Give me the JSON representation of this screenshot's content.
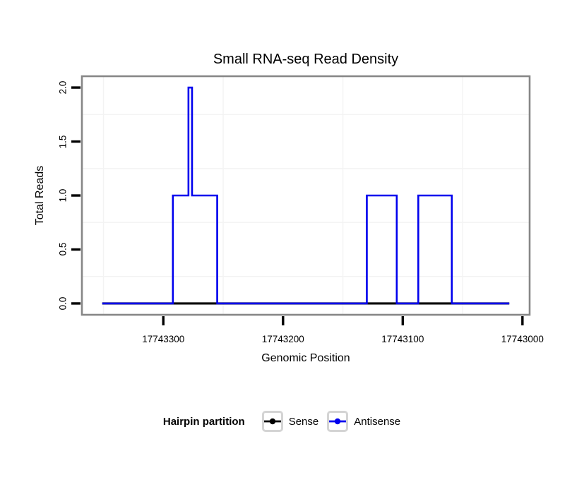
{
  "chart_data": {
    "type": "line",
    "subtype": "step-coverage",
    "title": "Small RNA-seq Read Density",
    "xlabel": "Genomic Position",
    "ylabel": "Total Reads",
    "x_axis": {
      "reversed": true,
      "domain_left": 17743368,
      "domain_right": 17742994,
      "ticks": [
        {
          "value": 17743300,
          "label": "17743300"
        },
        {
          "value": 17743200,
          "label": "17743200"
        },
        {
          "value": 17743100,
          "label": "17743100"
        },
        {
          "value": 17743000,
          "label": "17743000"
        }
      ]
    },
    "y_axis": {
      "domain_bottom": -0.105,
      "domain_top": 2.105,
      "ticks": [
        {
          "value": 0.0,
          "label": "0.0"
        },
        {
          "value": 0.5,
          "label": "0.5"
        },
        {
          "value": 1.0,
          "label": "1.0"
        },
        {
          "value": 1.5,
          "label": "1.5"
        },
        {
          "value": 2.0,
          "label": "2.0"
        }
      ]
    },
    "grid": {
      "show_major": false,
      "show_minor": true,
      "minor_color": "#f3f3f3"
    },
    "panel": {
      "border_color": "#878787",
      "background": "#ffffff"
    },
    "series": [
      {
        "name": "Sense",
        "color": "#000000",
        "stroke_width": 3.2,
        "points": [
          [
            17743351,
            0
          ],
          [
            17743011,
            0
          ]
        ]
      },
      {
        "name": "Antisense",
        "color": "#0000EE",
        "stroke_width": 2.6,
        "points": [
          [
            17743351,
            0
          ],
          [
            17743292,
            0
          ],
          [
            17743292,
            1
          ],
          [
            17743279,
            1
          ],
          [
            17743279,
            2
          ],
          [
            17743276,
            2
          ],
          [
            17743276,
            1
          ],
          [
            17743255,
            1
          ],
          [
            17743255,
            0
          ],
          [
            17743130,
            0
          ],
          [
            17743130,
            1
          ],
          [
            17743105,
            1
          ],
          [
            17743105,
            0
          ],
          [
            17743087,
            0
          ],
          [
            17743087,
            1
          ],
          [
            17743059,
            1
          ],
          [
            17743059,
            0
          ],
          [
            17743011,
            0
          ]
        ]
      }
    ],
    "legend": {
      "title": "Hairpin partition",
      "position": "bottom",
      "entries": [
        {
          "label": "Sense",
          "color": "#000000"
        },
        {
          "label": "Antisense",
          "color": "#0000EE"
        }
      ]
    }
  }
}
